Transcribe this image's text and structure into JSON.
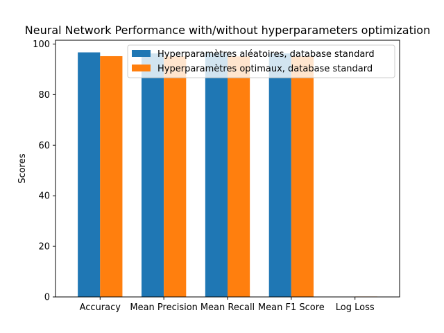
{
  "chart_data": {
    "type": "bar",
    "title": "Neural Network Performance with/without hyperparameters optimization",
    "xlabel": "",
    "ylabel": "Scores",
    "categories": [
      "Accuracy",
      "Mean Precision",
      "Mean Recall",
      "Mean F1 Score",
      "Log Loss"
    ],
    "series": [
      {
        "name": "Hyperparamètres aléatoires, database standard",
        "color": "#1f77b4",
        "values": [
          96.7,
          96.3,
          96.4,
          96.3,
          0.12
        ]
      },
      {
        "name": "Hyperparamètres optimaux, database standard",
        "color": "#ff7f0e",
        "values": [
          95.2,
          95.1,
          95.1,
          95.1,
          0.16
        ]
      }
    ],
    "ylim": [
      0,
      101.5
    ],
    "yticks": [
      0,
      20,
      40,
      60,
      80,
      100
    ],
    "grid": false,
    "legend_position": "top-right"
  }
}
